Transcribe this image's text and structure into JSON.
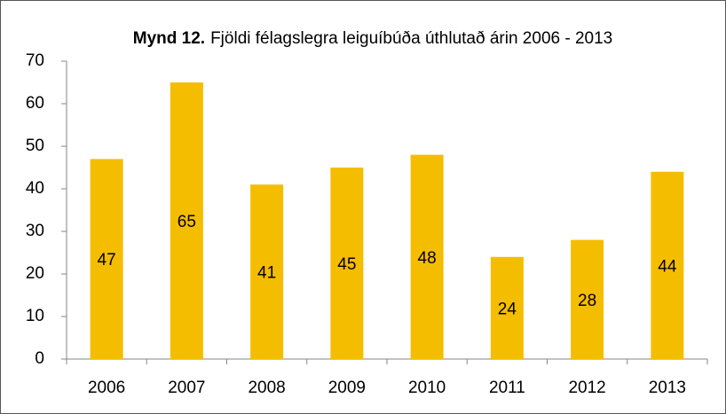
{
  "chart_data": {
    "type": "bar",
    "title_label": "Mynd 12.",
    "title": "Fjöldi félagslegra leiguíbúða úthlutað árin 2006 - 2013",
    "categories": [
      "2006",
      "2007",
      "2008",
      "2009",
      "2010",
      "2011",
      "2012",
      "2013"
    ],
    "values": [
      47,
      65,
      41,
      45,
      48,
      24,
      28,
      44
    ],
    "color": "#f5bd00",
    "ylim": [
      0,
      70
    ],
    "yticks": [
      0,
      10,
      20,
      30,
      40,
      50,
      60,
      70
    ],
    "grid": false
  }
}
